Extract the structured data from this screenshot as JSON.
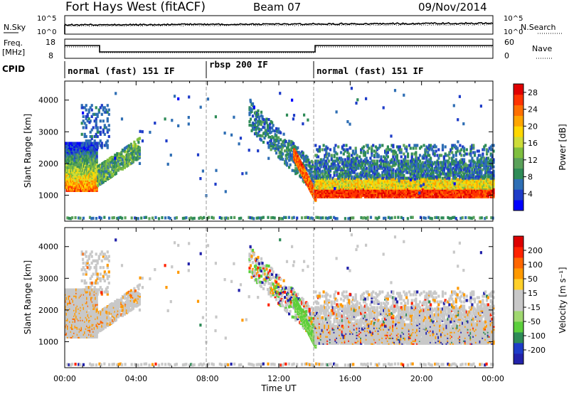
{
  "header": {
    "station": "Fort Hays West (fitACF)",
    "beam": "Beam 07",
    "date": "09/Nov/2014"
  },
  "top_panels": {
    "nsky_label": "N.Sky",
    "nsky_ticks": [
      "10^5",
      "10^0"
    ],
    "nsearch_label": "N.Search",
    "nsearch_ticks": [
      "10^5",
      "10^0"
    ],
    "freq_label": "Freq.",
    "freq_unit": "[MHz]",
    "freq_ticks": [
      "18",
      "8"
    ],
    "nave_label": "Nave",
    "nave_ticks": [
      "60",
      "0"
    ],
    "cpid_label": "CPID",
    "cpid_segments": [
      "normal (fast) 151 IF",
      "rbsp 200 IF",
      "normal (fast) 151 IF"
    ]
  },
  "colors": {
    "power": [
      "#0000ff",
      "#1e3cc8",
      "#2e6eb4",
      "#2e8b57",
      "#5aa15a",
      "#7fbf3f",
      "#cddc39",
      "#ffd700",
      "#ffa500",
      "#ff6f00",
      "#ff3300",
      "#e00000"
    ],
    "velocity": [
      "#2222aa",
      "#1e3cc8",
      "#2e8b57",
      "#5ccf3c",
      "#a0d870",
      "#c8c8c8",
      "#c8c8c8",
      "#ffd02a",
      "#ff9900",
      "#ff6600",
      "#ff2200",
      "#dd0000"
    ]
  },
  "chart_data": [
    {
      "type": "heatmap",
      "name": "power",
      "xlabel": "Time UT",
      "ylabel": "Slant Range [km]",
      "xlim": [
        0,
        24
      ],
      "ylim": [
        180,
        4600
      ],
      "x_ticks": [
        "00:00",
        "04:00",
        "08:00",
        "12:00",
        "16:00",
        "20:00",
        "00:00"
      ],
      "y_ticks": [
        "1000",
        "2000",
        "3000",
        "4000"
      ],
      "y_tick_values": [
        1000,
        2000,
        3000,
        4000
      ],
      "colorbar": {
        "label": "Power [dB]",
        "ticks": [
          "4",
          "8",
          "12",
          "16",
          "20",
          "24",
          "28"
        ],
        "tick_values": [
          4,
          8,
          12,
          16,
          20,
          24,
          28
        ],
        "range": [
          0,
          30
        ]
      }
    },
    {
      "type": "heatmap",
      "name": "velocity",
      "xlabel": "Time UT",
      "ylabel": "Slant Range [km]",
      "xlim": [
        0,
        24
      ],
      "ylim": [
        180,
        4600
      ],
      "x_ticks": [
        "00:00",
        "04:00",
        "08:00",
        "12:00",
        "16:00",
        "20:00",
        "00:00"
      ],
      "y_ticks": [
        "1000",
        "2000",
        "3000",
        "4000"
      ],
      "y_tick_values": [
        1000,
        2000,
        3000,
        4000
      ],
      "colorbar": {
        "label": "Velocity [m s⁻¹]",
        "ticks": [
          "200",
          "100",
          "50",
          "15",
          "-15",
          "-50",
          "-100",
          "-200"
        ],
        "range": [
          -250,
          250
        ]
      }
    }
  ]
}
